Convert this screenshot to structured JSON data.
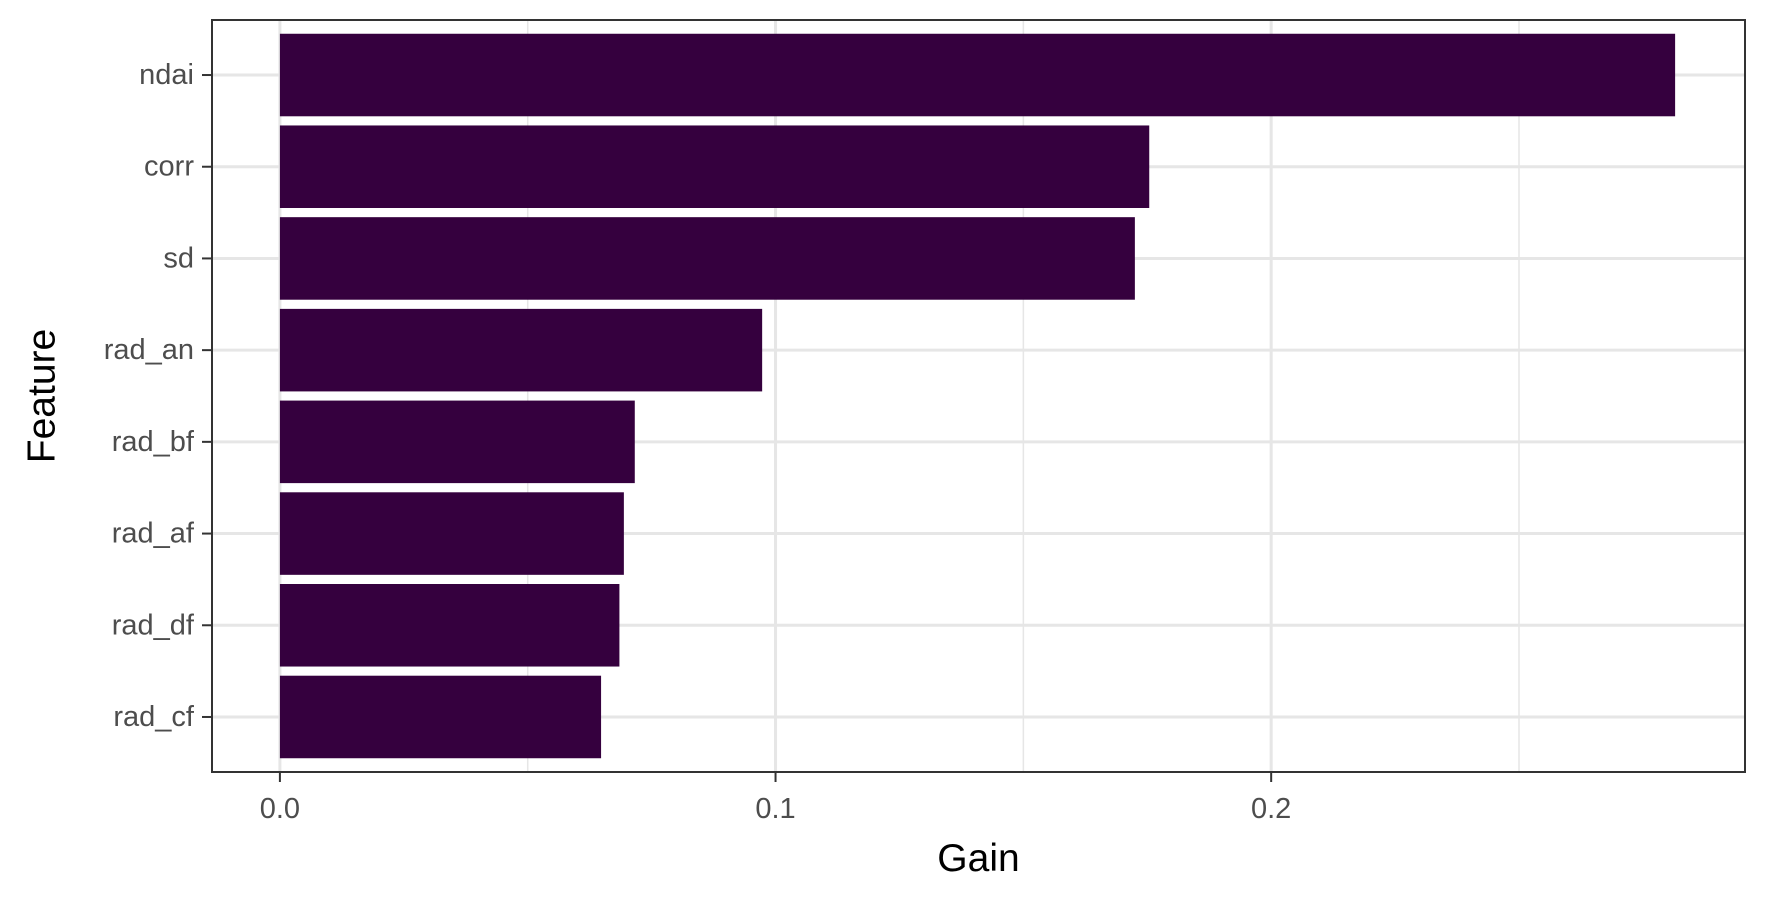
{
  "chart_data": {
    "type": "bar",
    "orientation": "horizontal",
    "categories": [
      "ndai",
      "corr",
      "sd",
      "rad_an",
      "rad_bf",
      "rad_af",
      "rad_df",
      "rad_cf"
    ],
    "values": [
      0.2815,
      0.1754,
      0.1725,
      0.0973,
      0.0716,
      0.0694,
      0.0685,
      0.0648
    ],
    "xlabel": "Gain",
    "ylabel": "Feature",
    "xlim": [
      -0.0137,
      0.2956
    ],
    "x_ticks": [
      0.0,
      0.1,
      0.2
    ],
    "x_tick_labels": [
      "0.0",
      "0.1",
      "0.2"
    ],
    "x_minor_gridlines": [
      0.05,
      0.15,
      0.25
    ],
    "grid": true,
    "legend": "none",
    "colors": {
      "bar": "#35003e",
      "grid": "#e6e6e6",
      "panel_border": "#333333",
      "tick_label": "#4d4d4d",
      "axis_title": "#000000"
    }
  }
}
